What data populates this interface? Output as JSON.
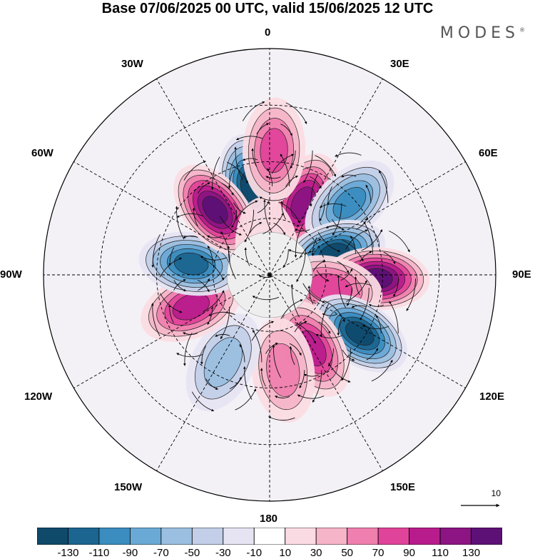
{
  "title": "Base 07/06/2025 00 UTC, valid 15/06/2025 12 UTC",
  "brand": "MODES",
  "brand_mark": "®",
  "longitude_labels": {
    "lon_0": "0",
    "lon_30e": "30E",
    "lon_60e": "60E",
    "lon_90e": "90E",
    "lon_120e": "120E",
    "lon_150e": "150E",
    "lon_180": "180",
    "lon_150w": "150W",
    "lon_120w": "120W",
    "lon_90w": "90W",
    "lon_60w": "60W",
    "lon_30w": "30W"
  },
  "reference_vector_label": "10",
  "colorbar": {
    "colors": [
      "#0f4a6b",
      "#1b6590",
      "#3b8cbf",
      "#6aa9d6",
      "#9bbfe0",
      "#c3cfe8",
      "#e6e4f2",
      "#ffffff",
      "#fbdbe3",
      "#f6b4c8",
      "#ef7fae",
      "#e0439a",
      "#b81c8c",
      "#8c1483",
      "#5d1075"
    ],
    "tick_labels": [
      "-130",
      "-110",
      "-90",
      "-70",
      "-50",
      "-30",
      "-10",
      "10",
      "30",
      "50",
      "70",
      "90",
      "110",
      "130"
    ]
  },
  "anomaly_centers": [
    {
      "lon": -12,
      "colat": 32,
      "value": -120
    },
    {
      "lon": 25,
      "colat": 28,
      "value": 110
    },
    {
      "lon": 48,
      "colat": 38,
      "value": -80
    },
    {
      "lon": 72,
      "colat": 24,
      "value": -120
    },
    {
      "lon": 92,
      "colat": 38,
      "value": 125
    },
    {
      "lon": 102,
      "colat": 22,
      "value": 70
    },
    {
      "lon": 123,
      "colat": 38,
      "value": -125
    },
    {
      "lon": 150,
      "colat": 30,
      "value": 80
    },
    {
      "lon": 172,
      "colat": 34,
      "value": 40
    },
    {
      "lon": -152,
      "colat": 35,
      "value": -45
    },
    {
      "lon": -112,
      "colat": 30,
      "value": 80
    },
    {
      "lon": -82,
      "colat": 28,
      "value": -110
    },
    {
      "lon": -40,
      "colat": 30,
      "value": 120
    },
    {
      "lon": -6,
      "colat": 9,
      "value": 10
    },
    {
      "lon": 2,
      "colat": 44,
      "value": 70
    }
  ]
}
